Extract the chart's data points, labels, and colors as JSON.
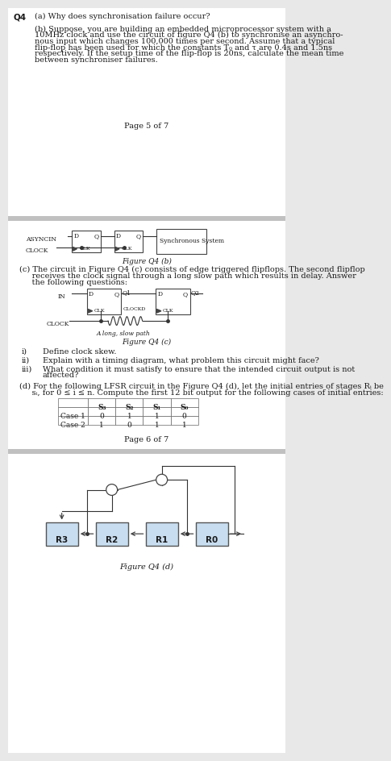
{
  "bg_color": "#e8e8e8",
  "page_bg": "#ffffff",
  "text_color": "#1a1a1a",
  "box_fill": "#c8ddf0",
  "box_edge": "#444444",
  "q4_label": "Q4",
  "qa_text": "(a) Why does synchronisation failure occur?",
  "qb_line1": "(b) Suppose, you are building an embedded microprocessor system with a",
  "qb_line2": "10MHz clock and use the circuit of figure Q4 (b) to synchronise an asynchro-",
  "qb_line3": "nous input which changes 100,000 times per second. Assume that a typical",
  "qb_line4": "flip-flop has been used for which the constants T₀ and τ are 0.4s and 1.5ns",
  "qb_line5": "respectively. If the setup time of the flip-flop is 20ns, calculate the mean time",
  "qb_line6": "between synchroniser failures.",
  "page5_text": "Page 5 of 7",
  "fig_qb_label": "Figure Q4 (b)",
  "qc_line1": "(c) The circuit in Figure Q4 (c) consists of edge triggered flipflops. The second flipflop",
  "qc_line2": "     receives the clock signal through a long slow path which results in delay. Answer",
  "qc_line3": "     the following questions:",
  "fig_qc_label": "Figure Q4 (c)",
  "qi_text": "i)",
  "qi_content": "Define clock skew.",
  "qii_text": "ii)",
  "qii_content": "Explain with a timing diagram, what problem this circuit might face?",
  "qiii_text": "iii)",
  "qiii_line1": "What condition it must satisfy to ensure that the intended circuit output is not",
  "qiii_line2": "affected?",
  "qd_line1": "(d) For the following LFSR circuit in the Figure Q4 (d), let the initial entries of stages Rᵢ be",
  "qd_line2": "     sᵢ, for 0 ≤ i ≤ n. Compute the first 12 bit output for the following cases of initial entries:",
  "table_headers": [
    "",
    "S₃",
    "S₂",
    "S₁",
    "S₀"
  ],
  "table_row1": [
    "Case 1",
    "0",
    "1",
    "1",
    "0"
  ],
  "table_row2": [
    "Case 2",
    "1",
    "0",
    "1",
    "1"
  ],
  "page6_text": "Page 6 of 7",
  "fig_qd_label": "Figure Q4 (d)",
  "asyncin_label": "ASYNCIN",
  "clock_label": "CLOCK",
  "sync_system_label": "Synchronous System",
  "in_label": "IN",
  "q1_label": "Q1",
  "q2_label": "Q2",
  "clockd_label": "CLOCKD",
  "long_slow_path": "A long, slow path",
  "r3_label": "R3",
  "r2_label": "R2",
  "r1_label": "R1",
  "r0_label": "R0"
}
